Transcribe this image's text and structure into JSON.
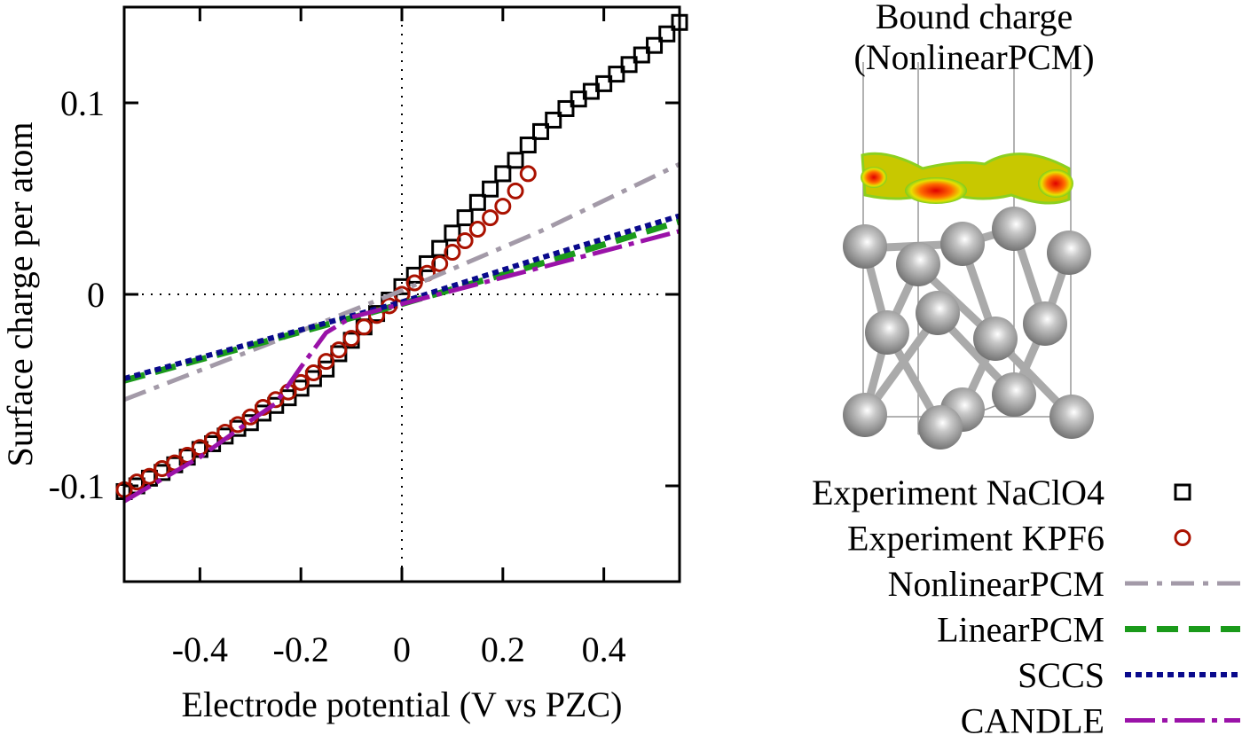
{
  "chart_data": {
    "type": "line",
    "xlabel": "Electrode potential (V vs PZC)",
    "ylabel": "Surface charge per atom",
    "image_title": [
      "Bound charge",
      "(NonlinearPCM)"
    ],
    "xlim": [
      -0.55,
      0.55
    ],
    "ylim": [
      -0.15,
      0.15
    ],
    "xticks": [
      -0.4,
      -0.2,
      0,
      0.2,
      0.4
    ],
    "yticks": [
      -0.1,
      0,
      0.1
    ],
    "zero_lines": true,
    "series": [
      {
        "name": "Experiment NaClO4",
        "color": "#000000",
        "marker": "square",
        "x": [
          -0.55,
          -0.525,
          -0.5,
          -0.475,
          -0.45,
          -0.425,
          -0.4,
          -0.375,
          -0.35,
          -0.325,
          -0.3,
          -0.275,
          -0.25,
          -0.225,
          -0.2,
          -0.175,
          -0.15,
          -0.125,
          -0.1,
          -0.075,
          -0.05,
          -0.025,
          0,
          0.025,
          0.05,
          0.075,
          0.1,
          0.125,
          0.15,
          0.175,
          0.2,
          0.225,
          0.25,
          0.275,
          0.3,
          0.325,
          0.35,
          0.375,
          0.4,
          0.425,
          0.45,
          0.475,
          0.5,
          0.525,
          0.55
        ],
        "values": [
          -0.103,
          -0.1,
          -0.096,
          -0.093,
          -0.089,
          -0.085,
          -0.081,
          -0.078,
          -0.074,
          -0.07,
          -0.067,
          -0.062,
          -0.058,
          -0.054,
          -0.049,
          -0.044,
          -0.039,
          -0.031,
          -0.024,
          -0.017,
          -0.01,
          -0.003,
          0.004,
          0.01,
          0.016,
          0.024,
          0.032,
          0.04,
          0.048,
          0.055,
          0.063,
          0.07,
          0.078,
          0.085,
          0.091,
          0.097,
          0.102,
          0.106,
          0.11,
          0.115,
          0.12,
          0.125,
          0.13,
          0.136,
          0.142
        ]
      },
      {
        "name": "Experiment KPF6",
        "color": "#aa1100",
        "marker": "circle",
        "x": [
          -0.55,
          -0.525,
          -0.5,
          -0.475,
          -0.45,
          -0.425,
          -0.4,
          -0.375,
          -0.35,
          -0.325,
          -0.3,
          -0.275,
          -0.25,
          -0.225,
          -0.2,
          -0.175,
          -0.15,
          -0.125,
          -0.1,
          -0.075,
          -0.05,
          -0.025,
          0,
          0.025,
          0.05,
          0.075,
          0.1,
          0.125,
          0.15,
          0.175,
          0.2,
          0.225,
          0.25
        ],
        "values": [
          -0.102,
          -0.098,
          -0.095,
          -0.091,
          -0.088,
          -0.084,
          -0.08,
          -0.076,
          -0.072,
          -0.068,
          -0.064,
          -0.059,
          -0.055,
          -0.051,
          -0.046,
          -0.041,
          -0.035,
          -0.029,
          -0.023,
          -0.017,
          -0.011,
          -0.006,
          0,
          0.006,
          0.011,
          0.016,
          0.022,
          0.028,
          0.034,
          0.04,
          0.046,
          0.054,
          0.063
        ]
      },
      {
        "name": "NonlinearPCM",
        "color": "#a39aa8",
        "style": "dash-dot",
        "x": [
          -0.55,
          -0.275,
          0,
          0.275,
          0.55
        ],
        "values": [
          -0.055,
          -0.027,
          0.002,
          0.033,
          0.068
        ]
      },
      {
        "name": "LinearPCM",
        "color": "#1a9a1a",
        "style": "dash",
        "x": [
          -0.55,
          -0.275,
          0,
          0.275,
          0.55
        ],
        "values": [
          -0.045,
          -0.025,
          -0.005,
          0.016,
          0.038
        ]
      },
      {
        "name": "SCCS",
        "color": "#0a0a8c",
        "style": "dot",
        "x": [
          -0.55,
          -0.275,
          0,
          0.275,
          0.55
        ],
        "values": [
          -0.044,
          -0.024,
          -0.004,
          0.019,
          0.041
        ]
      },
      {
        "name": "CANDLE",
        "color": "#9a12a8",
        "style": "long-dash-dot",
        "x": [
          -0.55,
          -0.4,
          -0.3,
          -0.25,
          -0.2,
          -0.15,
          -0.1,
          0,
          0.275,
          0.55
        ],
        "values": [
          -0.108,
          -0.085,
          -0.066,
          -0.057,
          -0.038,
          -0.02,
          -0.012,
          -0.005,
          0.014,
          0.033
        ]
      }
    ]
  }
}
